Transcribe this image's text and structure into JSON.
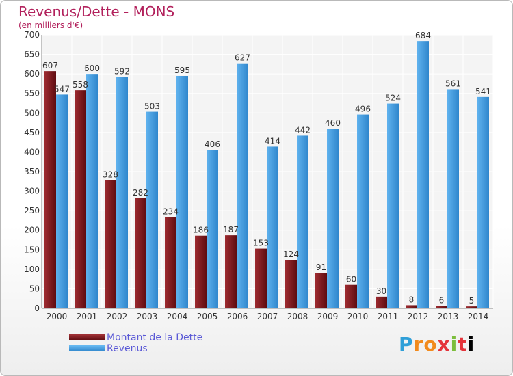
{
  "chart_data": {
    "type": "bar",
    "title": "Revenus/Dette - MONS",
    "subtitle": "(en milliers d'€)",
    "categories": [
      "2000",
      "2001",
      "2002",
      "2003",
      "2004",
      "2005",
      "2006",
      "2007",
      "2008",
      "2009",
      "2010",
      "2011",
      "2012",
      "2013",
      "2014"
    ],
    "series": [
      {
        "name": "Montant de la Dette",
        "color": "#7a1418",
        "values": [
          607,
          558,
          328,
          282,
          234,
          186,
          187,
          153,
          124,
          91,
          60,
          30,
          8,
          6,
          5
        ]
      },
      {
        "name": "Revenus",
        "color": "#3d96de",
        "values": [
          547,
          600,
          592,
          503,
          595,
          406,
          627,
          414,
          442,
          460,
          496,
          524,
          684,
          561,
          541
        ]
      }
    ],
    "ylim": [
      0,
      700
    ],
    "yticks": [
      0,
      50,
      100,
      150,
      200,
      250,
      300,
      350,
      400,
      450,
      500,
      550,
      600,
      650,
      700
    ],
    "grid": true,
    "legend_position": "bottom-left"
  },
  "logo": {
    "letters": [
      "P",
      "r",
      "o",
      "x",
      "i",
      "t",
      "i"
    ]
  }
}
